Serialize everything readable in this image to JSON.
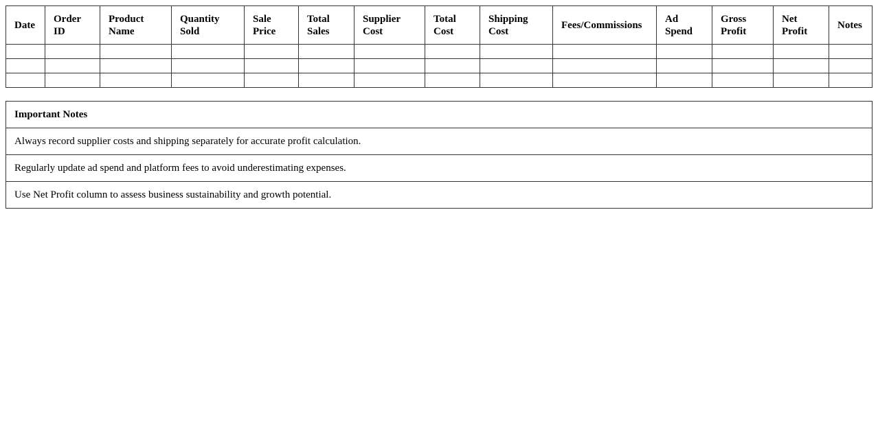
{
  "table": {
    "headers": [
      "Date",
      "Order ID",
      "Product Name",
      "Quantity Sold",
      "Sale Price",
      "Total Sales",
      "Supplier Cost",
      "Total Cost",
      "Shipping Cost",
      "Fees/Commissions",
      "Ad Spend",
      "Gross Profit",
      "Net Profit",
      "Notes"
    ],
    "row_count": 3
  },
  "notes": {
    "title": "Important Notes",
    "items": [
      "Always record supplier costs and shipping separately for accurate profit calculation.",
      "Regularly update ad spend and platform fees to avoid underestimating expenses.",
      "Use Net Profit column to assess business sustainability and growth potential."
    ]
  }
}
